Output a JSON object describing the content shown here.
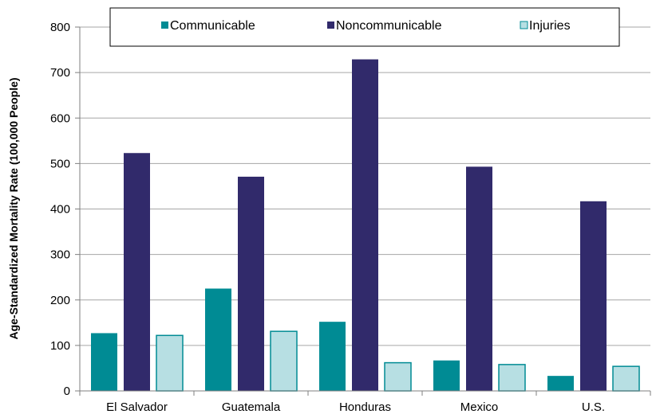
{
  "chart_data": {
    "type": "bar",
    "categories": [
      "El Salvador",
      "Guatemala",
      "Honduras",
      "Mexico",
      "U.S."
    ],
    "series": [
      {
        "name": "Communicable",
        "color": "#008b94",
        "values": [
          127,
          225,
          152,
          67,
          33
        ]
      },
      {
        "name": "Noncommunicable",
        "color": "#312a6b",
        "values": [
          523,
          471,
          729,
          493,
          417
        ]
      },
      {
        "name": "Injuries",
        "color": "#b7dfe3",
        "values": [
          122,
          131,
          62,
          58,
          54
        ]
      }
    ],
    "ylabel": "Age-Standardized Mortality Rate (100,000 People)",
    "ylim": [
      0,
      800
    ],
    "yticks": [
      0,
      100,
      200,
      300,
      400,
      500,
      600,
      700,
      800
    ],
    "grid": true,
    "legend_position": "top"
  }
}
